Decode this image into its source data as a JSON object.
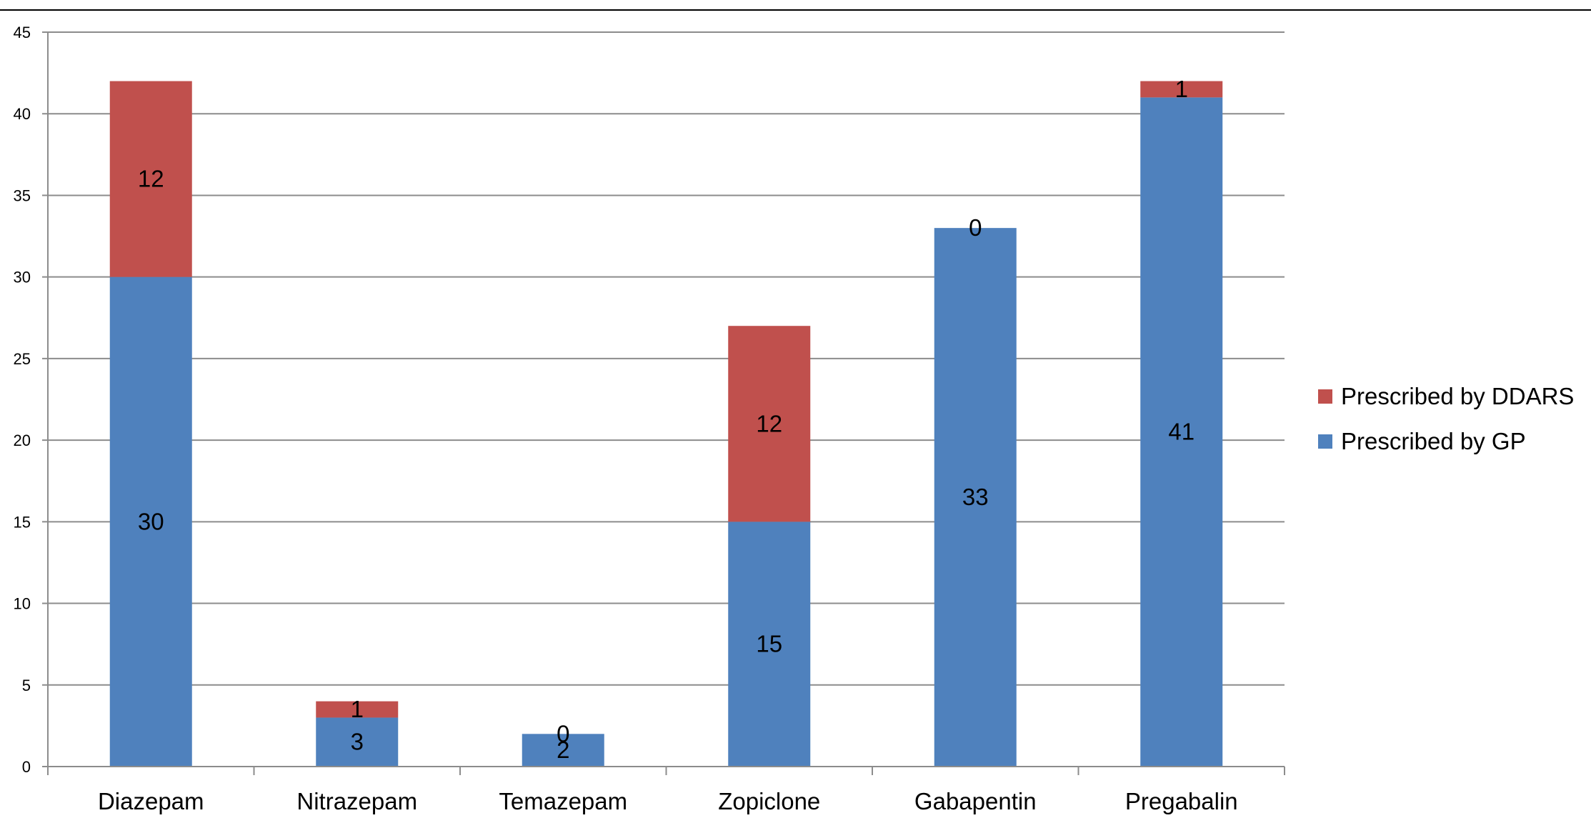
{
  "chart_data": {
    "type": "bar",
    "stacked": true,
    "categories": [
      "Diazepam",
      "Nitrazepam",
      "Temazepam",
      "Zopiclone",
      "Gabapentin",
      "Pregabalin"
    ],
    "series": [
      {
        "name": "Prescribed by GP",
        "values": [
          30,
          3,
          2,
          15,
          33,
          41
        ],
        "color": "#4F81BD"
      },
      {
        "name": "Prescribed by DDARS",
        "values": [
          12,
          1,
          0,
          12,
          0,
          1
        ],
        "color": "#C0504D"
      }
    ],
    "ylim": [
      0,
      45
    ],
    "yticks": [
      0,
      5,
      10,
      15,
      20,
      25,
      30,
      35,
      40,
      45
    ],
    "grid": true,
    "legend_position": "right",
    "legend_order": [
      "Prescribed by DDARS",
      "Prescribed by GP"
    ],
    "title": "",
    "xlabel": "",
    "ylabel": ""
  }
}
